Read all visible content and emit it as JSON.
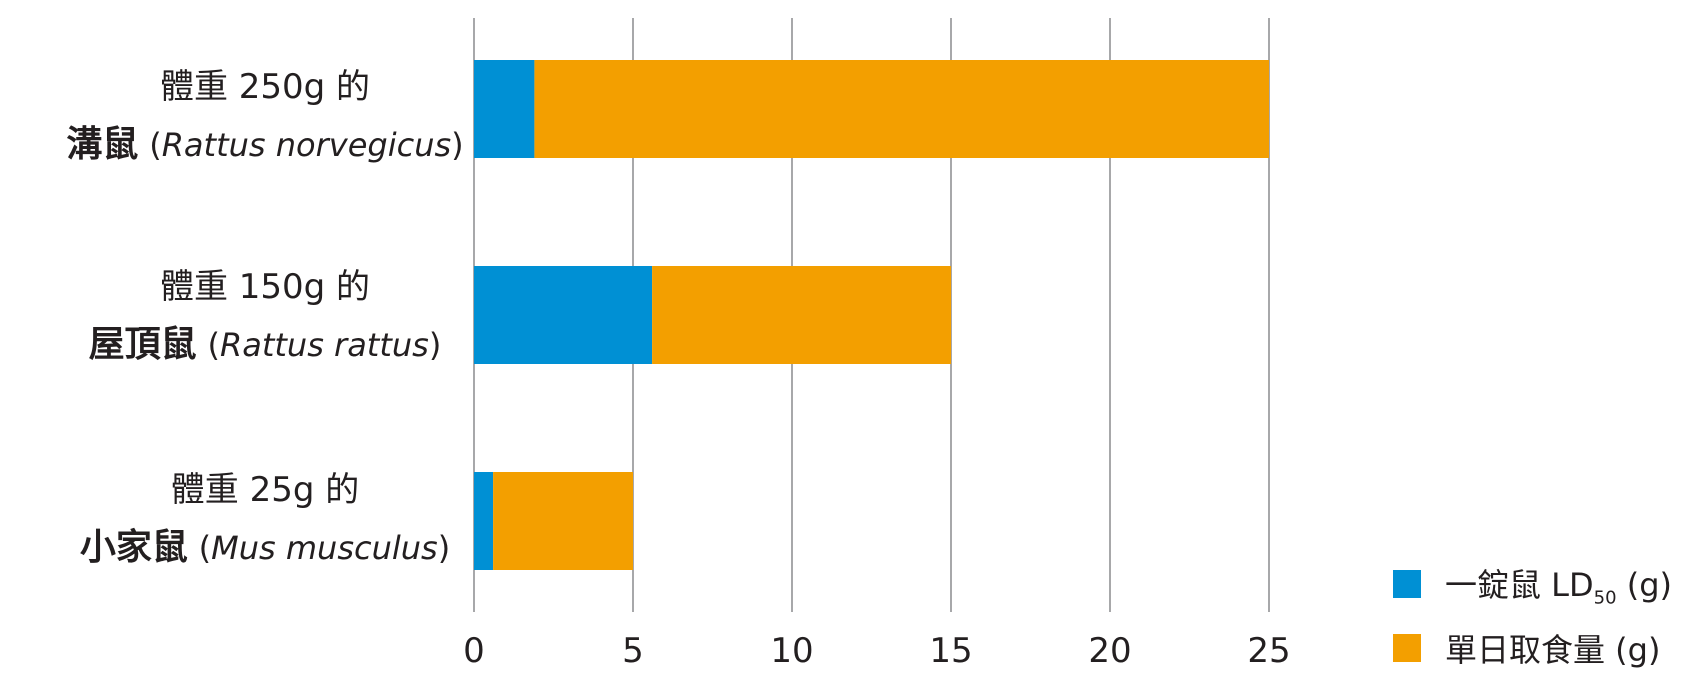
{
  "chart_data": {
    "type": "bar",
    "orientation": "horizontal",
    "stacked": true,
    "categories": [
      {
        "line1": "體重 250g 的",
        "name": "溝鼠",
        "open": "(",
        "latin": "Rattus norvegicus",
        "close": ")"
      },
      {
        "line1": "體重 150g 的",
        "name": "屋頂鼠",
        "open": "(",
        "latin": "Rattus rattus",
        "close": ")"
      },
      {
        "line1": "體重 25g 的",
        "name": "小家鼠",
        "open": "(",
        "latin": "Mus musculus",
        "close": ")"
      }
    ],
    "series": [
      {
        "name_main": "一錠鼠 LD",
        "name_sub": "50",
        "name_end": " (g)",
        "color": "#0090d4",
        "values": [
          1.9,
          5.6,
          0.6
        ]
      },
      {
        "name_main": "單日取食量 (g)",
        "name_sub": "",
        "name_end": "",
        "color": "#f39f00",
        "values": [
          23.1,
          9.4,
          4.4
        ]
      }
    ],
    "totals": [
      25,
      15,
      5
    ],
    "xlim": [
      0,
      25
    ],
    "xticks": [
      0,
      5,
      10,
      15,
      20,
      25
    ],
    "grid": true,
    "legend_position": "bottom-right"
  }
}
